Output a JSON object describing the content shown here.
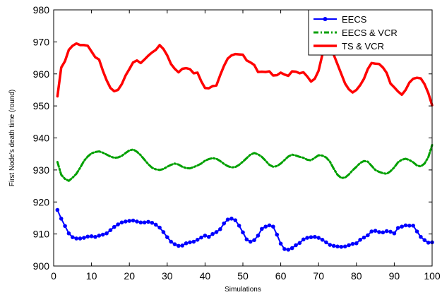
{
  "chart_data": {
    "type": "line",
    "xlabel": "Simulations",
    "ylabel": "First Node's death time (round)",
    "xlim": [
      0,
      100
    ],
    "ylim": [
      900,
      980
    ],
    "xticks": [
      0,
      10,
      20,
      30,
      40,
      50,
      60,
      70,
      80,
      90,
      100
    ],
    "yticks": [
      900,
      910,
      920,
      930,
      940,
      950,
      960,
      970,
      980
    ],
    "grid": false,
    "legend": "top-right",
    "series": [
      {
        "name": "EECS",
        "color": "#0000ff",
        "style": "solid-dot",
        "x": [
          1,
          2,
          3,
          4,
          5,
          6,
          7,
          8,
          9,
          10,
          11,
          12,
          13,
          14,
          15,
          16,
          17,
          18,
          19,
          20,
          21,
          22,
          23,
          24,
          25,
          26,
          27,
          28,
          29,
          30,
          31,
          32,
          33,
          34,
          35,
          36,
          37,
          38,
          39,
          40,
          41,
          42,
          43,
          44,
          45,
          46,
          47,
          48,
          49,
          50,
          51,
          52,
          53,
          54,
          55,
          56,
          57,
          58,
          59,
          60,
          61,
          62,
          63,
          64,
          65,
          66,
          67,
          68,
          69,
          70,
          71,
          72,
          73,
          74,
          75,
          76,
          77,
          78,
          79,
          80,
          81,
          82,
          83,
          84,
          85,
          86,
          87,
          88,
          89,
          90,
          91,
          92,
          93,
          94,
          95,
          96,
          97,
          98,
          99,
          100
        ],
        "y": [
          917.5,
          914.8,
          912.5,
          910.2,
          909.0,
          908.6,
          908.6,
          908.8,
          909.2,
          909.3,
          909.1,
          909.5,
          909.8,
          910.2,
          911.2,
          912.2,
          913.0,
          913.6,
          913.9,
          914.1,
          914.2,
          913.9,
          913.6,
          913.6,
          913.8,
          913.5,
          912.9,
          912.0,
          910.6,
          909.0,
          907.6,
          906.8,
          906.3,
          906.4,
          907.1,
          907.4,
          907.6,
          908.2,
          908.9,
          909.5,
          909.1,
          910.0,
          910.6,
          911.5,
          913.3,
          914.5,
          914.8,
          914.3,
          912.6,
          910.5,
          908.3,
          907.6,
          908.1,
          909.5,
          911.6,
          912.3,
          912.7,
          912.3,
          909.8,
          907.0,
          905.3,
          905.1,
          905.6,
          906.5,
          907.2,
          908.3,
          908.8,
          909.0,
          909.1,
          908.8,
          908.2,
          907.4,
          906.6,
          906.3,
          906.1,
          906.0,
          906.1,
          906.5,
          906.9,
          907.1,
          908.2,
          908.9,
          909.6,
          910.8,
          911.0,
          910.6,
          910.5,
          910.9,
          910.7,
          910.2,
          911.9,
          912.3,
          912.7,
          912.6,
          912.6,
          910.8,
          909.1,
          908.1,
          907.3,
          907.4
        ]
      },
      {
        "name": "EECS & VCR",
        "color": "#00a000",
        "style": "dash-dot",
        "x": [
          1,
          2,
          3,
          4,
          5,
          6,
          7,
          8,
          9,
          10,
          11,
          12,
          13,
          14,
          15,
          16,
          17,
          18,
          19,
          20,
          21,
          22,
          23,
          24,
          25,
          26,
          27,
          28,
          29,
          30,
          31,
          32,
          33,
          34,
          35,
          36,
          37,
          38,
          39,
          40,
          41,
          42,
          43,
          44,
          45,
          46,
          47,
          48,
          49,
          50,
          51,
          52,
          53,
          54,
          55,
          56,
          57,
          58,
          59,
          60,
          61,
          62,
          63,
          64,
          65,
          66,
          67,
          68,
          69,
          70,
          71,
          72,
          73,
          74,
          75,
          76,
          77,
          78,
          79,
          80,
          81,
          82,
          83,
          84,
          85,
          86,
          87,
          88,
          89,
          90,
          91,
          92,
          93,
          94,
          95,
          96,
          97,
          98,
          99,
          100
        ],
        "y": [
          932.5,
          928.5,
          927.2,
          926.6,
          927.6,
          928.8,
          930.7,
          932.8,
          934.2,
          935.2,
          935.6,
          935.8,
          935.4,
          934.8,
          934.2,
          933.8,
          933.9,
          934.4,
          935.3,
          936.1,
          936.4,
          935.7,
          934.6,
          933.2,
          931.8,
          930.7,
          930.2,
          930.0,
          930.3,
          931.0,
          931.6,
          932.0,
          931.7,
          931.0,
          930.6,
          930.5,
          930.9,
          931.4,
          932.0,
          932.9,
          933.4,
          933.7,
          933.5,
          932.8,
          931.9,
          931.2,
          930.8,
          930.9,
          931.6,
          932.6,
          933.7,
          934.8,
          935.3,
          934.9,
          934.1,
          932.9,
          931.6,
          931.0,
          931.2,
          932.0,
          933.1,
          934.2,
          934.8,
          934.5,
          934.1,
          933.8,
          933.2,
          933.0,
          933.8,
          934.6,
          934.5,
          933.9,
          932.6,
          930.4,
          928.5,
          927.5,
          927.6,
          928.6,
          929.9,
          931.0,
          932.2,
          932.8,
          932.6,
          931.3,
          930.0,
          929.4,
          929.0,
          928.8,
          929.6,
          930.8,
          932.4,
          933.2,
          933.5,
          933.1,
          932.4,
          931.4,
          931.1,
          932.0,
          934.0,
          937.8
        ]
      },
      {
        "name": "TS & VCR",
        "color": "#ff0000",
        "style": "solid-thick",
        "x": [
          1,
          2,
          3,
          4,
          5,
          6,
          7,
          8,
          9,
          10,
          11,
          12,
          13,
          14,
          15,
          16,
          17,
          18,
          19,
          20,
          21,
          22,
          23,
          24,
          25,
          26,
          27,
          28,
          29,
          30,
          31,
          32,
          33,
          34,
          35,
          36,
          37,
          38,
          39,
          40,
          41,
          42,
          43,
          44,
          45,
          46,
          47,
          48,
          49,
          50,
          51,
          52,
          53,
          54,
          55,
          56,
          57,
          58,
          59,
          60,
          61,
          62,
          63,
          64,
          65,
          66,
          67,
          68,
          69,
          70,
          71,
          72,
          73,
          74,
          75,
          76,
          77,
          78,
          79,
          80,
          81,
          82,
          83,
          84,
          85,
          86,
          87,
          88,
          89,
          90,
          91,
          92,
          93,
          94,
          95,
          96,
          97,
          98,
          99,
          100
        ],
        "y": [
          953.0,
          962.0,
          964.0,
          967.5,
          968.8,
          969.5,
          969.0,
          969.0,
          968.8,
          967.0,
          965.2,
          964.5,
          961.0,
          958.0,
          955.6,
          954.6,
          955.0,
          956.8,
          959.5,
          961.5,
          963.6,
          964.2,
          963.4,
          964.5,
          965.7,
          966.7,
          967.5,
          969.0,
          967.8,
          965.8,
          963.1,
          961.6,
          960.5,
          961.6,
          961.8,
          961.5,
          960.2,
          960.4,
          957.7,
          955.6,
          955.5,
          956.2,
          956.4,
          959.6,
          962.5,
          964.8,
          965.8,
          966.2,
          966.1,
          966.0,
          964.2,
          963.6,
          962.8,
          960.6,
          960.7,
          960.6,
          960.8,
          959.5,
          959.6,
          960.4,
          959.8,
          959.4,
          960.8,
          960.7,
          960.2,
          960.5,
          959.2,
          957.6,
          958.5,
          961.0,
          966.0,
          969.8,
          969.5,
          966.0,
          963.0,
          960.0,
          957.0,
          955.2,
          954.2,
          955.0,
          956.5,
          958.5,
          961.5,
          963.4,
          963.2,
          963.1,
          962.0,
          960.3,
          957.0,
          955.8,
          954.5,
          953.5,
          955.0,
          957.3,
          958.5,
          958.8,
          958.6,
          956.8,
          954.0,
          950.2
        ]
      }
    ]
  }
}
